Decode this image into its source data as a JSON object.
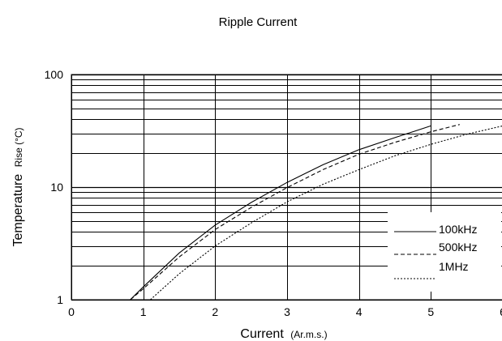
{
  "chart_data": {
    "type": "line",
    "title": "Ripple Current",
    "xlabel": "Current",
    "xlabel_unit": "(Ar.m.s.)",
    "ylabel": "Temperature",
    "ylabel_unit": "Rise (°C)",
    "x_scale": "linear",
    "y_scale": "log",
    "xlim": [
      0,
      6
    ],
    "ylim": [
      1,
      100
    ],
    "grid": true,
    "x_ticks": [
      "0",
      "1",
      "2",
      "3",
      "4",
      "5",
      "6"
    ],
    "y_ticks": [
      "1",
      "10",
      "100"
    ],
    "legend_placement": "bottom-right",
    "series": [
      {
        "name": "100kHz",
        "style": "solid",
        "x": [
          0.82,
          1.0,
          1.5,
          2.0,
          2.5,
          3.0,
          3.5,
          4.0,
          4.5,
          5.0
        ],
        "y": [
          1.0,
          1.3,
          2.6,
          4.6,
          7.3,
          11.0,
          15.8,
          21.5,
          27.5,
          35.0
        ]
      },
      {
        "name": "500kHz",
        "style": "dashed",
        "x": [
          0.82,
          1.0,
          1.5,
          2.0,
          2.5,
          3.0,
          3.5,
          4.0,
          4.5,
          5.0,
          5.4
        ],
        "y": [
          1.0,
          1.25,
          2.4,
          4.2,
          6.6,
          9.9,
          14.3,
          19.6,
          25.0,
          31.0,
          36.0
        ]
      },
      {
        "name": "1MHz",
        "style": "dotted",
        "x": [
          1.1,
          1.5,
          2.0,
          2.5,
          3.0,
          3.5,
          4.0,
          4.5,
          5.0,
          5.5,
          6.0
        ],
        "y": [
          1.0,
          1.7,
          3.0,
          4.8,
          7.4,
          10.6,
          14.3,
          19.0,
          24.0,
          29.5,
          35.0
        ]
      }
    ]
  }
}
